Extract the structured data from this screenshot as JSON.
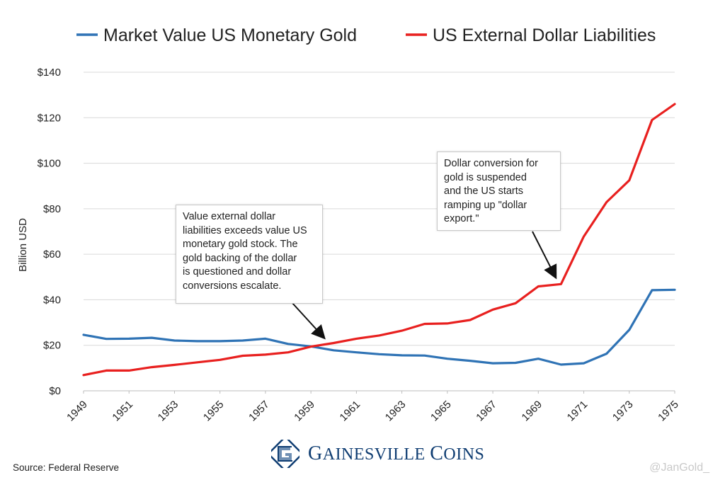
{
  "chart_data": {
    "type": "line",
    "title": "",
    "xlabel": "",
    "ylabel": "Billion USD",
    "ylim": [
      0,
      140
    ],
    "yticks": [
      0,
      20,
      40,
      60,
      80,
      100,
      120,
      140
    ],
    "ytick_labels": [
      "$0",
      "$20",
      "$40",
      "$60",
      "$80",
      "$100",
      "$120",
      "$140"
    ],
    "xlim": [
      1949,
      1975
    ],
    "xtick_labels": [
      "1949",
      "1951",
      "1953",
      "1955",
      "1957",
      "1959",
      "1961",
      "1963",
      "1965",
      "1967",
      "1969",
      "1971",
      "1973",
      "1975"
    ],
    "grid": true,
    "legend_position": "top",
    "x": [
      1949,
      1950,
      1951,
      1952,
      1953,
      1954,
      1955,
      1956,
      1957,
      1958,
      1959,
      1960,
      1961,
      1962,
      1963,
      1964,
      1965,
      1966,
      1967,
      1968,
      1969,
      1970,
      1971,
      1972,
      1973,
      1974,
      1975
    ],
    "series": [
      {
        "name": "Market Value US Monetary Gold",
        "color": "#2f73b5",
        "values": [
          24.6,
          22.8,
          22.9,
          23.3,
          22.1,
          21.8,
          21.8,
          22.1,
          22.9,
          20.6,
          19.5,
          17.8,
          16.9,
          16.1,
          15.6,
          15.5,
          14.1,
          13.2,
          12.1,
          12.3,
          14.1,
          11.5,
          12.1,
          16.3,
          26.8,
          44.2,
          44.4
        ]
      },
      {
        "name": "US External Dollar Liabilities",
        "color": "#e8201f",
        "values": [
          6.9,
          8.9,
          8.9,
          10.4,
          11.4,
          12.5,
          13.6,
          15.4,
          15.9,
          16.9,
          19.4,
          21.0,
          22.9,
          24.3,
          26.4,
          29.4,
          29.6,
          31.1,
          35.7,
          38.5,
          45.9,
          46.9,
          67.8,
          82.9,
          92.5,
          119.0,
          126.0
        ]
      }
    ],
    "annotations": [
      {
        "text": "Value external dollar\nliabilities exceeds value US\nmonetary gold stock. The\ngold backing of the dollar\nis questioned and dollar\nconversions escalate.",
        "points_to_year": 1959.5
      },
      {
        "text": "Dollar conversion for\ngold is suspended\nand the US starts\nramping up \"dollar\nexport.\"",
        "points_to_year": 1970
      }
    ]
  },
  "footer": {
    "source": "Source: Federal Reserve",
    "brand_first": "G",
    "brand_rest": "AINESVILLE ",
    "brand_second": "C",
    "brand_tail": "OINS",
    "handle": "@JanGold_"
  },
  "icons": {
    "brand_logo": "gainesville-coins-logo-icon"
  }
}
